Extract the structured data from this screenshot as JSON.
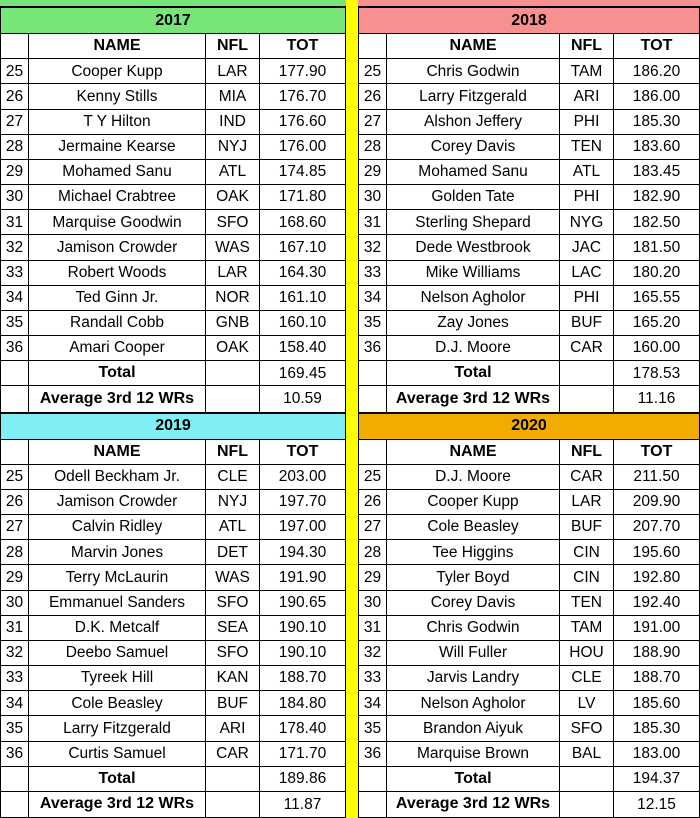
{
  "layout_colors": {
    "divider": "#FFFF00",
    "grid": "#000000",
    "background": "#FFFFFF"
  },
  "chart_data": [
    {
      "type": "table",
      "title": "2017",
      "header_color": "#77E577",
      "columns": [
        "",
        "NAME",
        "NFL",
        "TOT"
      ],
      "rows": [
        [
          "25",
          "Cooper Kupp",
          "LAR",
          "177.90"
        ],
        [
          "26",
          "Kenny Stills",
          "MIA",
          "176.70"
        ],
        [
          "27",
          "T Y Hilton",
          "IND",
          "176.60"
        ],
        [
          "28",
          "Jermaine Kearse",
          "NYJ",
          "176.00"
        ],
        [
          "29",
          "Mohamed Sanu",
          "ATL",
          "174.85"
        ],
        [
          "30",
          "Michael Crabtree",
          "OAK",
          "171.80"
        ],
        [
          "31",
          "Marquise Goodwin",
          "SFO",
          "168.60"
        ],
        [
          "32",
          "Jamison Crowder",
          "WAS",
          "167.10"
        ],
        [
          "33",
          "Robert Woods",
          "LAR",
          "164.30"
        ],
        [
          "34",
          "Ted Ginn Jr.",
          "NOR",
          "161.10"
        ],
        [
          "35",
          "Randall Cobb",
          "GNB",
          "160.10"
        ],
        [
          "36",
          "Amari Cooper",
          "OAK",
          "158.40"
        ]
      ],
      "total_row": {
        "label": "Total",
        "value": "169.45"
      },
      "average_row": {
        "label": "Average 3rd 12 WRs",
        "value": "10.59"
      }
    },
    {
      "type": "table",
      "title": "2018",
      "header_color": "#F99090",
      "columns": [
        "",
        "NAME",
        "NFL",
        "TOT"
      ],
      "rows": [
        [
          "25",
          "Chris Godwin",
          "TAM",
          "186.20"
        ],
        [
          "26",
          "Larry Fitzgerald",
          "ARI",
          "186.00"
        ],
        [
          "27",
          "Alshon Jeffery",
          "PHI",
          "185.30"
        ],
        [
          "28",
          "Corey Davis",
          "TEN",
          "183.60"
        ],
        [
          "29",
          "Mohamed Sanu",
          "ATL",
          "183.45"
        ],
        [
          "30",
          "Golden Tate",
          "PHI",
          "182.90"
        ],
        [
          "31",
          "Sterling Shepard",
          "NYG",
          "182.50"
        ],
        [
          "32",
          "Dede Westbrook",
          "JAC",
          "181.50"
        ],
        [
          "33",
          "Mike Williams",
          "LAC",
          "180.20"
        ],
        [
          "34",
          "Nelson Agholor",
          "PHI",
          "165.55"
        ],
        [
          "35",
          "Zay Jones",
          "BUF",
          "165.20"
        ],
        [
          "36",
          "D.J. Moore",
          "CAR",
          "160.00"
        ]
      ],
      "total_row": {
        "label": "Total",
        "value": "178.53"
      },
      "average_row": {
        "label": "Average 3rd 12 WRs",
        "value": "11.16"
      }
    },
    {
      "type": "table",
      "title": "2019",
      "header_color": "#80EFF5",
      "columns": [
        "",
        "NAME",
        "NFL",
        "TOT"
      ],
      "rows": [
        [
          "25",
          "Odell Beckham Jr.",
          "CLE",
          "203.00"
        ],
        [
          "26",
          "Jamison Crowder",
          "NYJ",
          "197.70"
        ],
        [
          "27",
          "Calvin Ridley",
          "ATL",
          "197.00"
        ],
        [
          "28",
          "Marvin Jones",
          "DET",
          "194.30"
        ],
        [
          "29",
          "Terry McLaurin",
          "WAS",
          "191.90"
        ],
        [
          "30",
          "Emmanuel Sanders",
          "SFO",
          "190.65"
        ],
        [
          "31",
          "D.K. Metcalf",
          "SEA",
          "190.10"
        ],
        [
          "32",
          "Deebo Samuel",
          "SFO",
          "190.10"
        ],
        [
          "33",
          "Tyreek Hill",
          "KAN",
          "188.70"
        ],
        [
          "34",
          "Cole Beasley",
          "BUF",
          "184.80"
        ],
        [
          "35",
          "Larry Fitzgerald",
          "ARI",
          "178.40"
        ],
        [
          "36",
          "Curtis Samuel",
          "CAR",
          "171.70"
        ]
      ],
      "total_row": {
        "label": "Total",
        "value": "189.86"
      },
      "average_row": {
        "label": "Average 3rd 12 WRs",
        "value": "11.87"
      }
    },
    {
      "type": "table",
      "title": "2020",
      "header_color": "#F2AB00",
      "columns": [
        "",
        "NAME",
        "NFL",
        "TOT"
      ],
      "rows": [
        [
          "25",
          "D.J. Moore",
          "CAR",
          "211.50"
        ],
        [
          "26",
          "Cooper Kupp",
          "LAR",
          "209.90"
        ],
        [
          "27",
          "Cole Beasley",
          "BUF",
          "207.70"
        ],
        [
          "28",
          "Tee Higgins",
          "CIN",
          "195.60"
        ],
        [
          "29",
          "Tyler Boyd",
          "CIN",
          "192.80"
        ],
        [
          "30",
          "Corey Davis",
          "TEN",
          "192.40"
        ],
        [
          "31",
          "Chris Godwin",
          "TAM",
          "191.00"
        ],
        [
          "32",
          "Will Fuller",
          "HOU",
          "188.90"
        ],
        [
          "33",
          "Jarvis Landry",
          "CLE",
          "188.70"
        ],
        [
          "34",
          "Nelson Agholor",
          "LV",
          "185.60"
        ],
        [
          "35",
          "Brandon Aiyuk",
          "SFO",
          "185.30"
        ],
        [
          "36",
          "Marquise Brown",
          "BAL",
          "183.00"
        ]
      ],
      "total_row": {
        "label": "Total",
        "value": "194.37"
      },
      "average_row": {
        "label": "Average 3rd 12 WRs",
        "value": "12.15"
      }
    }
  ]
}
